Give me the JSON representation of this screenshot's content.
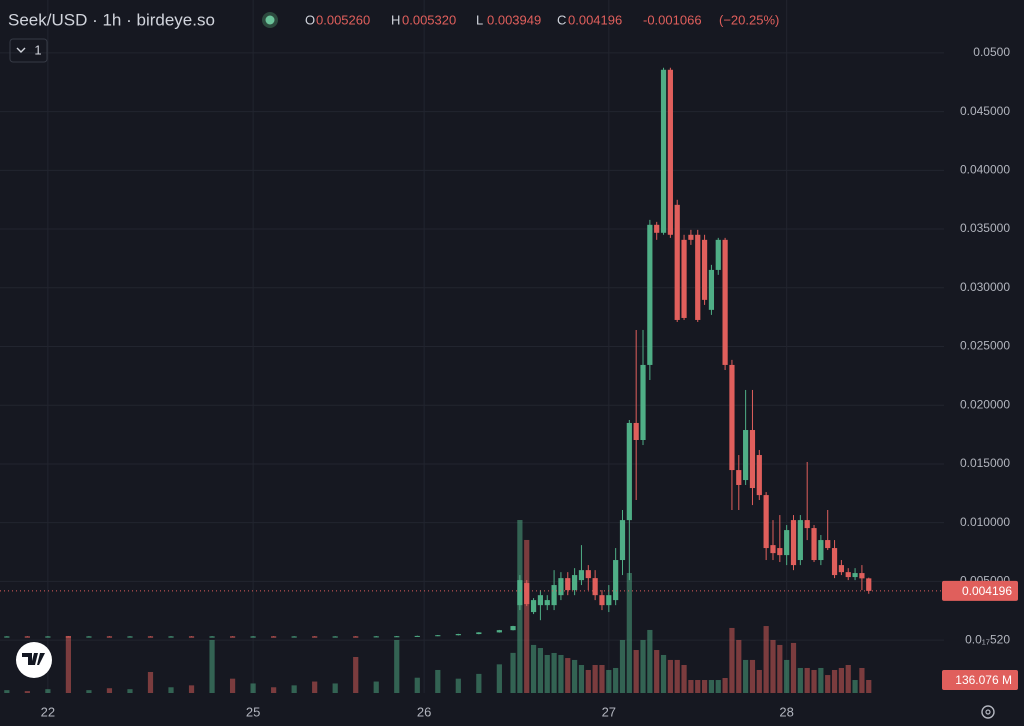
{
  "chart_data": {
    "type": "candlestick",
    "title": "Seek/USD · 1h · birdeye.so",
    "interval_button": "1",
    "legend": {
      "labels": [
        "O",
        "H",
        "L",
        "C"
      ],
      "values": [
        {
          "value": 0.00526,
          "label": "0.005260"
        },
        {
          "value": 0.00532,
          "label": "0.005320"
        },
        0.003949,
        0.004196
      ],
      "change": -0.001066,
      "change_pct": {
        "value": -20.25,
        "label": "(−20.25%)"
      }
    },
    "up_color": "#4fae86",
    "down_color": "#e05f5c",
    "x": [
      -7,
      -4,
      -1,
      2,
      5,
      8,
      11,
      14,
      17,
      20,
      23,
      26,
      29,
      32,
      35,
      38,
      41,
      44,
      47,
      50,
      53,
      56,
      59,
      62,
      65,
      67,
      68,
      69,
      70,
      71,
      72,
      73,
      74,
      75,
      76,
      77,
      78,
      79,
      80,
      81,
      82,
      83,
      84,
      85,
      86,
      87,
      88,
      89,
      90,
      91,
      92,
      93,
      94,
      95,
      96,
      97,
      98,
      99,
      100,
      101,
      102,
      103,
      104,
      105,
      106,
      107,
      108,
      109,
      110,
      111,
      112,
      113,
      114,
      115,
      116,
      117,
      118,
      119
    ],
    "open": [
      0.0003,
      0.00031,
      0.0003,
      0.00031,
      0.0003,
      0.00031,
      0.0003,
      0.00031,
      0.0003,
      0.00031,
      0.0003,
      0.00031,
      0.0003,
      0.00031,
      0.0003,
      0.00031,
      0.0003,
      0.00031,
      0.0003,
      0.00032,
      0.00033,
      0.00036,
      0.00042,
      0.00052,
      0.00066,
      0.00085,
      0.00298,
      0.00486,
      0.00239,
      0.00298,
      0.00298,
      0.00298,
      0.00383,
      0.00528,
      0.00426,
      0.00511,
      0.00596,
      0.00528,
      0.00383,
      0.00298,
      0.00341,
      0.00682,
      0.01022,
      0.01849,
      0.01704,
      0.02343,
      0.03536,
      0.03468,
      0.04856,
      0.03706,
      0.03408,
      0.03451,
      0.03451,
      0.03408,
      0.02812,
      0.03152,
      0.03408,
      0.02343,
      0.01448,
      0.01363,
      0.01789,
      0.01576,
      0.01235,
      0.00809,
      0.00784,
      0.00724,
      0.01022,
      0.00682,
      0.01022,
      0.00954,
      0.00682,
      0.00852,
      0.00784,
      0.00639,
      0.00579,
      0.00537,
      0.00571,
      0.00526
    ],
    "high": [
      0.00033,
      0.00033,
      0.00033,
      0.00033,
      0.00033,
      0.00033,
      0.00033,
      0.00033,
      0.00033,
      0.00033,
      0.00033,
      0.00033,
      0.00033,
      0.00033,
      0.00033,
      0.00033,
      0.00033,
      0.00033,
      0.00034,
      0.00035,
      0.00038,
      0.00044,
      0.00054,
      0.00068,
      0.00087,
      0.00122,
      0.00554,
      0.00511,
      0.00358,
      0.00426,
      0.00383,
      0.00596,
      0.00579,
      0.00579,
      0.00613,
      0.00809,
      0.00639,
      0.00596,
      0.00426,
      0.00469,
      0.00784,
      0.01108,
      0.01874,
      0.02641,
      0.02641,
      0.03578,
      0.03561,
      0.04873,
      0.04873,
      0.03749,
      0.03451,
      0.03493,
      0.03493,
      0.03451,
      0.03195,
      0.03425,
      0.03425,
      0.02386,
      0.01576,
      0.0213,
      0.0213,
      0.01619,
      0.01261,
      0.01022,
      0.01065,
      0.0098,
      0.01065,
      0.01065,
      0.01517,
      0.0098,
      0.00895,
      0.01108,
      0.00852,
      0.00682,
      0.00613,
      0.00613,
      0.00639,
      0.00532
    ],
    "low": [
      0.00028,
      0.00028,
      0.00028,
      0.00028,
      0.00028,
      0.00028,
      0.00028,
      0.00028,
      0.00028,
      0.00028,
      0.00028,
      0.00028,
      0.00028,
      0.00028,
      0.00028,
      0.00028,
      0.00028,
      0.00028,
      0.00028,
      0.0003,
      0.00031,
      0.00034,
      0.0004,
      0.0005,
      0.00064,
      0.00083,
      0.00256,
      0.0029,
      0.00222,
      0.0017,
      0.00256,
      0.00256,
      0.00341,
      0.00383,
      0.00383,
      0.00469,
      0.00426,
      0.00341,
      0.00256,
      0.00239,
      0.00298,
      0.00554,
      0.00511,
      0.01193,
      0.01661,
      0.02215,
      0.03408,
      0.03451,
      0.03425,
      0.02709,
      0.02726,
      0.03365,
      0.02709,
      0.02854,
      0.02769,
      0.0311,
      0.023,
      0.01108,
      0.01108,
      0.01321,
      0.0115,
      0.01193,
      0.00682,
      0.00682,
      0.00665,
      0.00639,
      0.00596,
      0.00639,
      0.00852,
      0.00665,
      0.00639,
      0.00767,
      0.00528,
      0.00554,
      0.00511,
      0.00511,
      0.00426,
      0.003949
    ],
    "close": [
      0.00031,
      0.0003,
      0.00031,
      0.0003,
      0.00031,
      0.0003,
      0.00031,
      0.0003,
      0.00031,
      0.0003,
      0.00031,
      0.0003,
      0.00031,
      0.0003,
      0.00031,
      0.0003,
      0.00031,
      0.0003,
      0.00032,
      0.00033,
      0.00036,
      0.00042,
      0.00052,
      0.00066,
      0.00085,
      0.0012,
      0.00511,
      0.00307,
      0.00341,
      0.00383,
      0.00341,
      0.00469,
      0.00528,
      0.00426,
      0.00554,
      0.00596,
      0.00528,
      0.00383,
      0.00298,
      0.00383,
      0.00682,
      0.01022,
      0.01849,
      0.01704,
      0.02343,
      0.03536,
      0.03468,
      0.04856,
      0.03451,
      0.02726,
      0.02743,
      0.03408,
      0.02726,
      0.02897,
      0.03152,
      0.03408,
      0.02343,
      0.01448,
      0.01321,
      0.01789,
      0.01295,
      0.01235,
      0.00784,
      0.00741,
      0.00724,
      0.00937,
      0.00639,
      0.01022,
      0.00954,
      0.00682,
      0.00852,
      0.00784,
      0.00554,
      0.00579,
      0.00537,
      0.00571,
      0.00526,
      0.004196
    ],
    "volume": [
      30,
      20,
      40,
      597,
      30,
      50,
      40,
      220,
      60,
      80,
      555,
      150,
      100,
      60,
      80,
      120,
      100,
      377,
      120,
      555,
      160,
      241,
      150,
      200,
      300,
      420,
      1811,
      1602,
      503,
      471,
      398,
      419,
      398,
      366,
      346,
      293,
      241,
      293,
      293,
      241,
      262,
      555,
      1256,
      450,
      555,
      660,
      450,
      398,
      346,
      346,
      293,
      136,
      136,
      136,
      136,
      136,
      157,
      681,
      555,
      346,
      346,
      241,
      701,
      555,
      503,
      346,
      524,
      262,
      262,
      241,
      262,
      188,
      241,
      262,
      293,
      136,
      262,
      136.076
    ],
    "xlim": [
      -8,
      130
    ],
    "xticks": [
      {
        "value": -1,
        "label": "22"
      },
      {
        "value": 29,
        "label": "25"
      },
      {
        "value": 54,
        "label": "26"
      },
      {
        "value": 81,
        "label": "27"
      },
      {
        "value": 107,
        "label": "28"
      }
    ],
    "ylim": [
      -0.0045,
      0.0545
    ],
    "yticks": [
      {
        "value": 5.2e-19,
        "label": "0.0₁₇520"
      },
      {
        "value": 0.005,
        "label": "0.005000"
      },
      {
        "value": 0.01,
        "label": "0.010000"
      },
      {
        "value": 0.015,
        "label": "0.015000"
      },
      {
        "value": 0.02,
        "label": "0.020000"
      },
      {
        "value": 0.025,
        "label": "0.025000"
      },
      {
        "value": 0.03,
        "label": "0.030000"
      },
      {
        "value": 0.035,
        "label": "0.035000"
      },
      {
        "value": 0.04,
        "label": "0.040000"
      },
      {
        "value": 0.045,
        "label": "0.045000"
      },
      {
        "value": 0.05,
        "label": "0.0500"
      }
    ],
    "grid": true,
    "last_price": 0.004196,
    "last_volume": {
      "value": 136.076,
      "label": "136.076 M"
    }
  }
}
